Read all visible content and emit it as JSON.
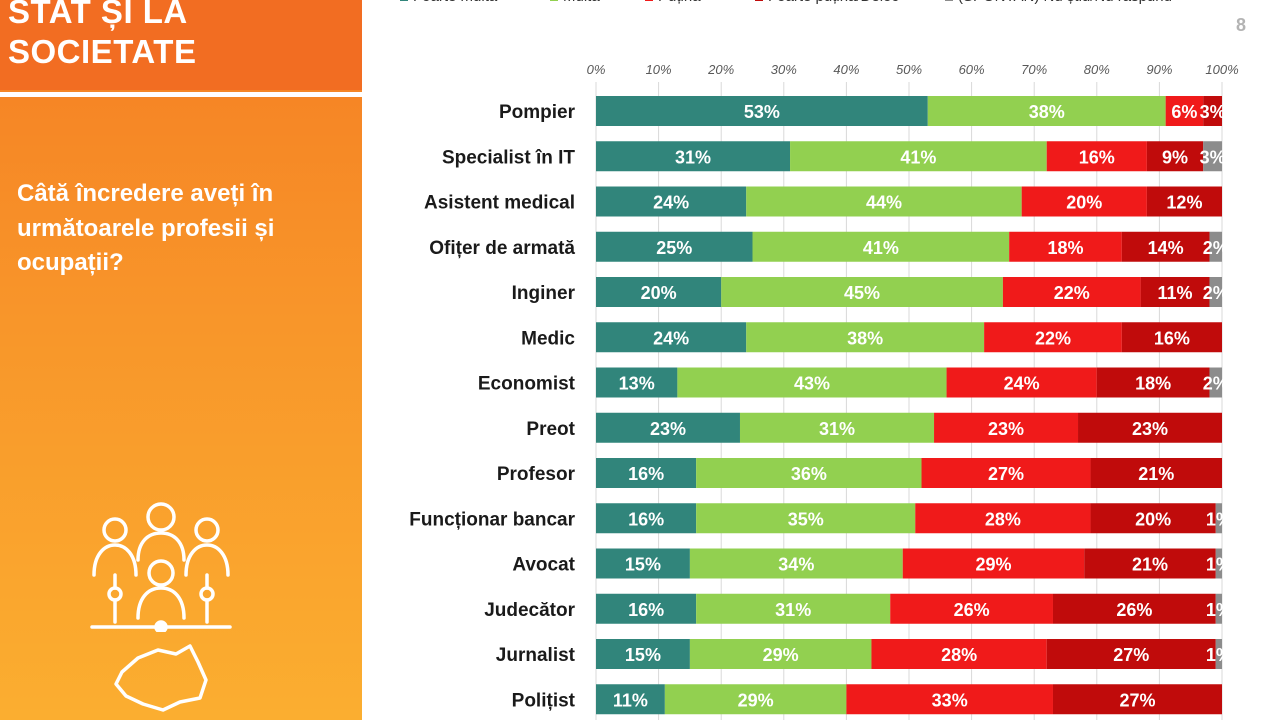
{
  "page": {
    "number": "8"
  },
  "sidebar": {
    "title_lines": [
      "STAT ȘI LA",
      "SOCIETATE"
    ],
    "question": "Câtă încredere aveți în următoarele profesii și ocupații?",
    "icons": [
      "people-network-icon",
      "romania-map-icon"
    ]
  },
  "colors": {
    "orange_top": "#f26d22",
    "orange_mid": "#f8962a",
    "orange_bottom": "#fbae30",
    "series": [
      "#31857b",
      "#92d050",
      "#f01a1a",
      "#c00b0b",
      "#8c8c8c"
    ]
  },
  "legend": [
    {
      "label": "Foarte multă",
      "color": "#31857b"
    },
    {
      "label": "Multă",
      "color": "#92d050"
    },
    {
      "label": "Puțină",
      "color": "#f01a1a"
    },
    {
      "label": "Foarte puțină/Deloc",
      "color": "#c00b0b"
    },
    {
      "label": "(SPONTAN) Nu știu/Nu răspund",
      "color": "#8c8c8c"
    }
  ],
  "chart_data": {
    "type": "bar",
    "orientation": "horizontal",
    "stacked": true,
    "title": "Câtă încredere aveți în următoarele profesii și ocupații?",
    "x_range": [
      0,
      100
    ],
    "x_ticks": [
      "0%",
      "10%",
      "20%",
      "30%",
      "40%",
      "50%",
      "60%",
      "70%",
      "80%",
      "90%",
      "100%"
    ],
    "legend_position": "top",
    "categories": [
      "Pompier",
      "Specialist în IT",
      "Asistent medical",
      "Ofițer de armată",
      "Inginer",
      "Medic",
      "Economist",
      "Preot",
      "Profesor",
      "Funcționar bancar",
      "Avocat",
      "Judecător",
      "Jurnalist",
      "Polițist"
    ],
    "series": [
      {
        "name": "Foarte multă",
        "values": [
          53,
          31,
          24,
          25,
          20,
          24,
          13,
          23,
          16,
          16,
          15,
          16,
          15,
          11
        ]
      },
      {
        "name": "Multă",
        "values": [
          38,
          41,
          44,
          41,
          45,
          38,
          43,
          31,
          36,
          35,
          34,
          31,
          29,
          29
        ]
      },
      {
        "name": "Puțină",
        "values": [
          6,
          16,
          20,
          18,
          22,
          22,
          24,
          23,
          27,
          28,
          29,
          26,
          28,
          33
        ]
      },
      {
        "name": "Foarte puțină/Deloc",
        "values": [
          3,
          9,
          12,
          14,
          11,
          16,
          18,
          23,
          21,
          20,
          21,
          26,
          27,
          27
        ]
      },
      {
        "name": "(SPONTAN) Nu știu/Nu răspund",
        "values": [
          0,
          3,
          0,
          2,
          2,
          0,
          2,
          0,
          0,
          1,
          1,
          1,
          1,
          0
        ]
      }
    ]
  }
}
